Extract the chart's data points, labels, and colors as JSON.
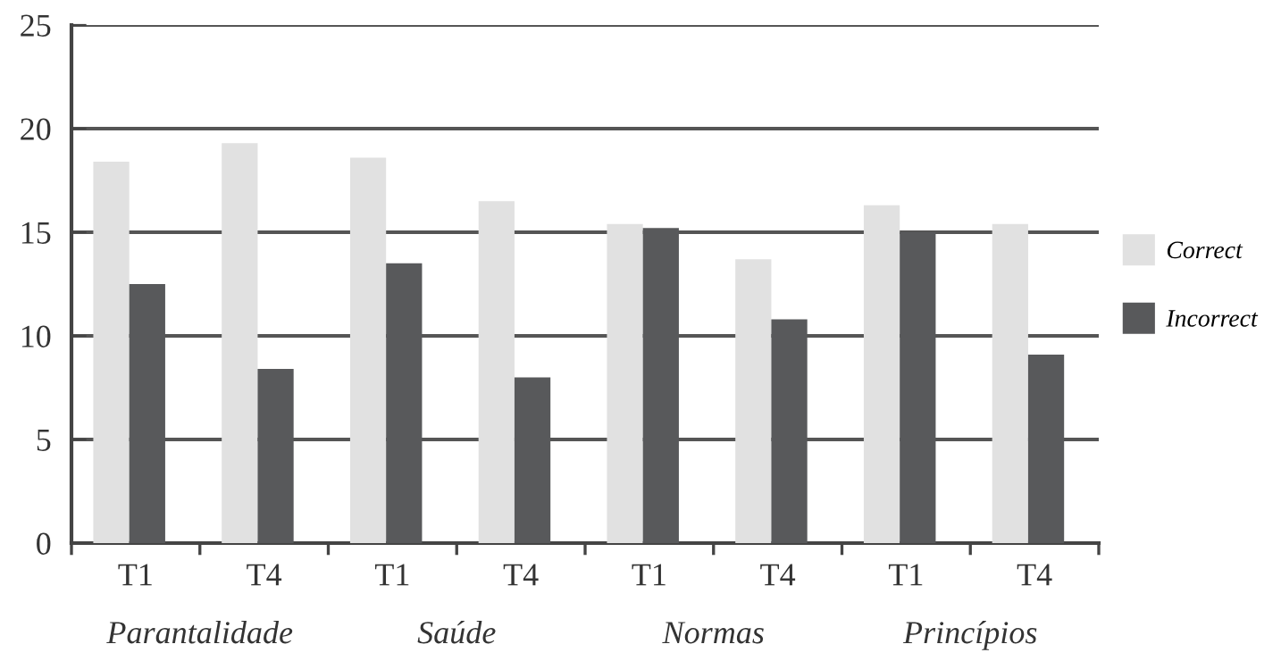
{
  "chart_data": {
    "type": "bar",
    "categories": [
      "T1",
      "T4",
      "T1",
      "T4",
      "T1",
      "T4",
      "T1",
      "T4"
    ],
    "series": [
      {
        "name": "Correct",
        "color": "#e1e1e1",
        "values": [
          18.4,
          19.3,
          18.6,
          16.5,
          15.4,
          13.7,
          16.3,
          15.4
        ]
      },
      {
        "name": "Incorrect",
        "color": "#58595b",
        "values": [
          12.5,
          8.4,
          13.5,
          8.0,
          15.2,
          10.8,
          15.0,
          9.1
        ]
      }
    ],
    "annotations": [
      "Parantalidade",
      "Saúde",
      "Normas",
      "Princípios"
    ],
    "ylim": [
      0,
      25
    ],
    "yticks": [
      0,
      5,
      10,
      15,
      20,
      25
    ],
    "grid": "y",
    "legend": "right"
  }
}
